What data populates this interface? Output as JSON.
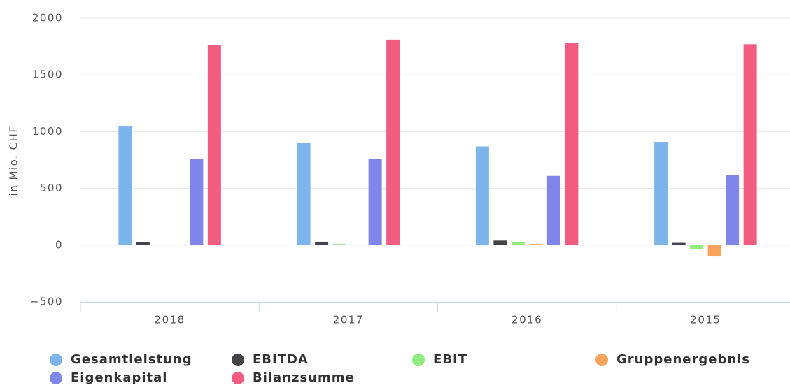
{
  "chart_data": {
    "type": "bar",
    "y_label": "in Mio. CHF",
    "categories": [
      "2018",
      "2017",
      "2016",
      "2015"
    ],
    "series": [
      {
        "name": "Gesamtleistung",
        "color": "#7cb5ec",
        "values": [
          1045,
          900,
          870,
          910
        ]
      },
      {
        "name": "EBITDA",
        "color": "#434348",
        "values": [
          25,
          30,
          40,
          20
        ]
      },
      {
        "name": "EBIT",
        "color": "#90ed7d",
        "values": [
          2,
          10,
          30,
          -35
        ]
      },
      {
        "name": "Gruppenergebnis",
        "color": "#f7a35c",
        "values": [
          0,
          0,
          10,
          -100
        ]
      },
      {
        "name": "Eigenkapital",
        "color": "#8085e9",
        "values": [
          760,
          760,
          610,
          620
        ]
      },
      {
        "name": "Bilanzsumme",
        "color": "#f15c80",
        "values": [
          1760,
          1810,
          1780,
          1770
        ]
      }
    ],
    "ylim": [
      -500,
      2000
    ],
    "yticks": [
      {
        "value": -500,
        "label": "−500"
      },
      0,
      500,
      1000,
      1500,
      2000
    ],
    "grid": true
  }
}
